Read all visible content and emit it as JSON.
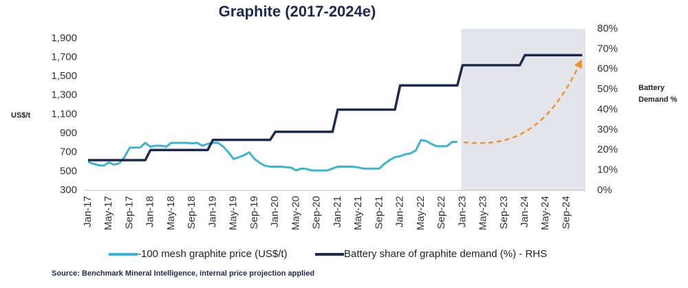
{
  "chart_data": {
    "type": "line",
    "title": "Graphite (2017-2024e)",
    "ylabel": "US$/t",
    "y2label": "Battery Demand %",
    "source": "Source: Benchmark Mineral Intelligence, internal price projection applied",
    "categories": [
      "Jan-17",
      null,
      null,
      null,
      "May-17",
      null,
      null,
      null,
      "Sep-17",
      null,
      null,
      null,
      "Jan-18",
      null,
      null,
      null,
      "May-18",
      null,
      null,
      null,
      "Sep-18",
      null,
      null,
      null,
      "Jan-19",
      null,
      null,
      null,
      "May-19",
      null,
      null,
      null,
      "Sep-19",
      null,
      null,
      null,
      "Jan-20",
      null,
      null,
      null,
      "May-20",
      null,
      null,
      null,
      "Sep-20",
      null,
      null,
      null,
      "Jan-21",
      null,
      null,
      null,
      "May-21",
      null,
      null,
      null,
      "Sep-21",
      null,
      null,
      null,
      "Jan-22",
      null,
      null,
      null,
      "May-22",
      null,
      null,
      null,
      "Sep-22",
      null,
      null,
      null,
      "Jan-23",
      null,
      null,
      null,
      "May-23",
      null,
      null,
      null,
      "Sep-23",
      null,
      null,
      null,
      "Jan-24",
      null,
      null,
      null,
      "May-24",
      null,
      null,
      null,
      "Sep-24",
      null,
      null,
      null
    ],
    "series": [
      {
        "name": "-100 mesh graphite price (US$/t)",
        "color": "#3bb5cf",
        "axis": "y",
        "values": [
          600,
          580,
          565,
          560,
          595,
          570,
          585,
          650,
          750,
          750,
          750,
          800,
          760,
          770,
          770,
          760,
          800,
          800,
          800,
          800,
          795,
          800,
          770,
          790,
          800,
          800,
          760,
          700,
          630,
          650,
          670,
          700,
          630,
          590,
          560,
          550,
          550,
          550,
          545,
          540,
          510,
          530,
          525,
          510,
          510,
          510,
          510,
          530,
          550,
          550,
          550,
          550,
          540,
          530,
          530,
          530,
          530,
          580,
          620,
          650,
          660,
          680,
          690,
          720,
          830,
          820,
          790,
          765,
          765,
          765,
          810,
          810,
          null,
          null,
          null,
          null,
          null,
          null,
          null,
          null,
          null,
          null,
          null,
          null,
          null,
          null,
          null,
          null,
          null,
          null,
          null,
          null,
          null,
          null,
          null,
          null
        ]
      },
      {
        "name": "Battery share of graphite demand (%) - RHS",
        "color": "#1b2a4e",
        "axis": "y2",
        "values": [
          15,
          15,
          15,
          15,
          15,
          15,
          15,
          15,
          15,
          15,
          15,
          15,
          20,
          20,
          20,
          20,
          20,
          20,
          20,
          20,
          20,
          20,
          20,
          20,
          25,
          25,
          25,
          25,
          25,
          25,
          25,
          25,
          25,
          25,
          25,
          25,
          29,
          29,
          29,
          29,
          29,
          29,
          29,
          29,
          29,
          29,
          29,
          29,
          40,
          40,
          40,
          40,
          40,
          40,
          40,
          40,
          40,
          40,
          40,
          40,
          52,
          52,
          52,
          52,
          52,
          52,
          52,
          52,
          52,
          52,
          52,
          52,
          62,
          62,
          62,
          62,
          62,
          62,
          62,
          62,
          62,
          62,
          62,
          62,
          67,
          67,
          67,
          67,
          67,
          67,
          67,
          67,
          67,
          67,
          67,
          67
        ]
      }
    ],
    "ylim": [
      300,
      2000
    ],
    "yticks": [
      300,
      500,
      700,
      {
        "value": 900,
        "label": "900"
      },
      {
        "value": 1100,
        "label": "1,100"
      },
      {
        "value": 1300,
        "label": "1,300"
      },
      {
        "value": 1500,
        "label": "1,500"
      },
      {
        "value": 1700,
        "label": "1,700"
      },
      {
        "value": 1900,
        "label": "1,900"
      }
    ],
    "y2lim": [
      0,
      80
    ],
    "y2ticks": [
      {
        "value": 0,
        "label": "0%"
      },
      {
        "value": 10,
        "label": "10%"
      },
      {
        "value": 20,
        "label": "20%"
      },
      {
        "value": 30,
        "label": "30%"
      },
      {
        "value": 40,
        "label": "40%"
      },
      {
        "value": 50,
        "label": "50%"
      },
      {
        "value": 60,
        "label": "60%"
      },
      {
        "value": 70,
        "label": "70%"
      },
      {
        "value": 80,
        "label": "80%"
      }
    ],
    "grid": false
  }
}
